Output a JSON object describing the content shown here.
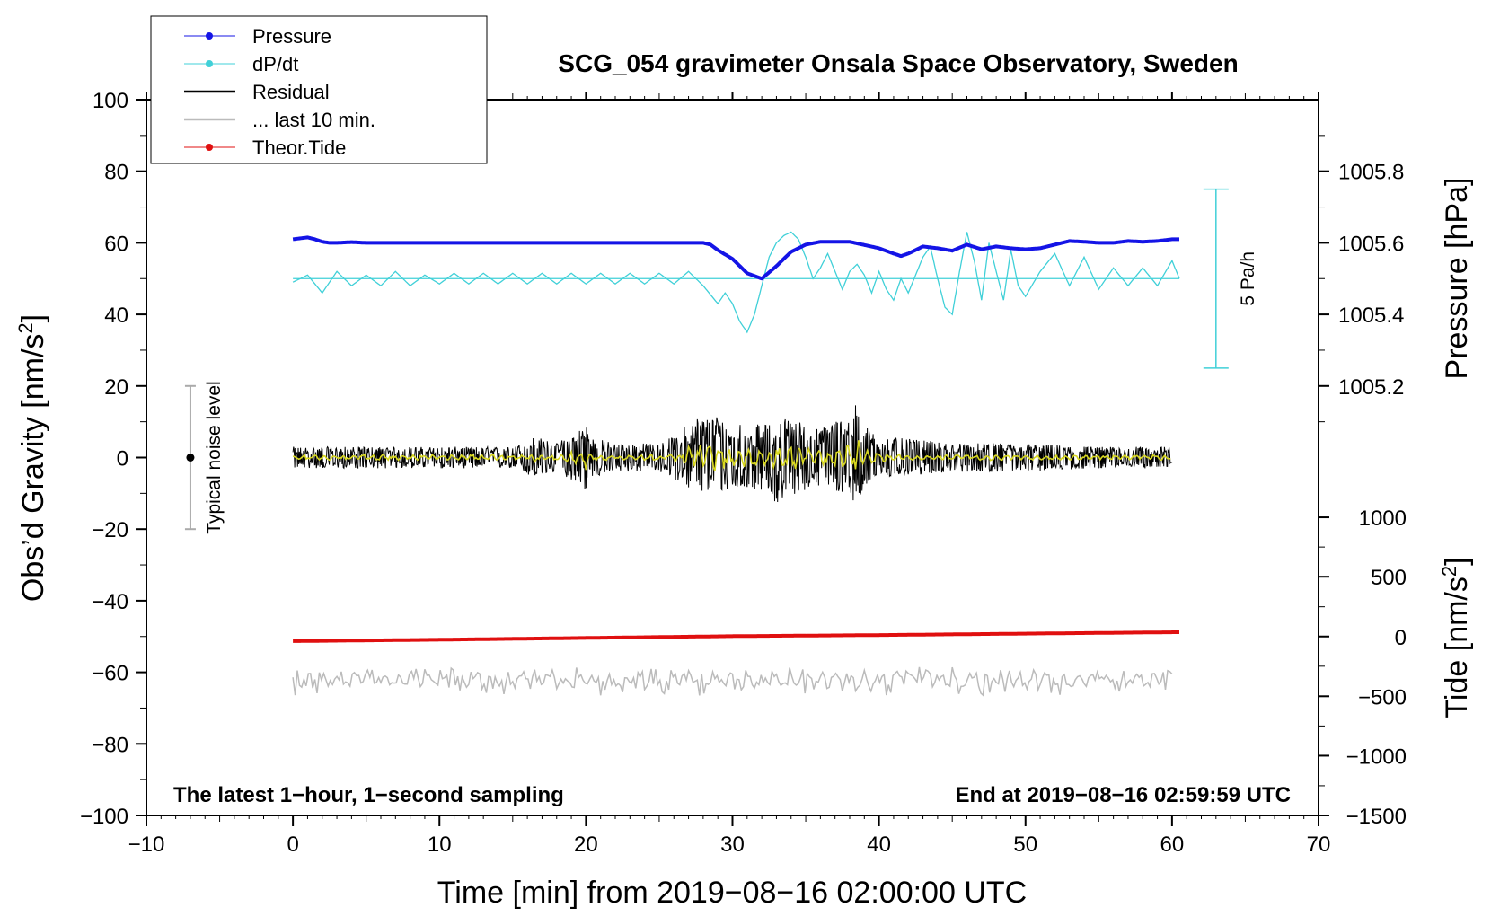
{
  "chart_data": {
    "type": "line",
    "title": "SCG_054 gravimeter Onsala Space Observatory, Sweden",
    "xlabel": "Time [min] from 2019−08−16 02:00:00 UTC",
    "ylabel_left_main": "Obs’d Gravity [nm/s",
    "ylabel_left_sup": "2",
    "ylabel_left_close": "]",
    "ylabel_right_top": "Pressure [hPa]",
    "ylabel_right_bottom_main": "Tide [nm/s",
    "ylabel_right_bottom_sup": "2",
    "ylabel_right_bottom_close": "]",
    "xlim": [
      -10,
      70
    ],
    "ylim_left": [
      -100,
      100
    ],
    "x_ticks": [
      "−10",
      "0",
      "10",
      "20",
      "30",
      "40",
      "50",
      "60",
      "70"
    ],
    "x_tick_values": [
      -10,
      0,
      10,
      20,
      30,
      40,
      50,
      60,
      70
    ],
    "y_ticks_left": [
      "100",
      "80",
      "60",
      "40",
      "20",
      "0",
      "−20",
      "−40",
      "−60",
      "−80",
      "−100"
    ],
    "y_tick_values_left": [
      100,
      80,
      60,
      40,
      20,
      0,
      -20,
      -40,
      -60,
      -80,
      -100
    ],
    "pressure_axis": {
      "ticks": [
        "1005.8",
        "1005.6",
        "1005.4",
        "1005.2"
      ],
      "values": [
        1005.8,
        1005.6,
        1005.4,
        1005.2
      ],
      "gravity_equivalent": [
        80,
        60,
        40,
        20
      ]
    },
    "tide_axis": {
      "ticks": [
        "1000",
        "500",
        "0",
        "−500",
        "−1000",
        "−1500"
      ],
      "values": [
        1000,
        500,
        0,
        -500,
        -1000,
        -1500
      ],
      "gravity_equivalent": [
        -16.7,
        -33.3,
        -50,
        -66.7,
        -83.3,
        -100
      ]
    },
    "legend": {
      "position": "top-left",
      "entries": [
        {
          "label": "Pressure",
          "color": "#1414e6",
          "marker": "dot"
        },
        {
          "label": "dP/dt",
          "color": "#40d0d8",
          "marker": "dot"
        },
        {
          "label": "Residual",
          "color": "#000000",
          "marker": "none"
        },
        {
          "label": "... last 10 min.",
          "color": "#bbbbbb",
          "marker": "none"
        },
        {
          "label": "Theor.Tide",
          "color": "#e01010",
          "marker": "dot"
        }
      ]
    },
    "series": [
      {
        "name": "Pressure",
        "color": "#1414e6",
        "x": [
          0,
          1,
          1.5,
          2,
          2.5,
          3,
          4,
          5,
          10,
          20,
          25,
          28,
          28.5,
          29,
          30,
          31,
          32,
          33,
          34,
          35,
          36,
          38,
          40,
          41,
          41.5,
          42,
          43,
          44,
          45,
          46,
          47,
          48,
          49,
          50,
          51,
          52,
          53,
          54,
          55,
          56,
          57,
          58,
          59,
          60,
          60.5
        ],
        "values": [
          61,
          61.5,
          61,
          60.3,
          60,
          60,
          60.2,
          60,
          60,
          60,
          60,
          60,
          59.5,
          58,
          55.5,
          51.5,
          50,
          53.5,
          57.5,
          59.5,
          60.3,
          60.3,
          58.5,
          57,
          56.3,
          57,
          59,
          58.5,
          57.8,
          59.5,
          58.2,
          59,
          58.5,
          58.2,
          58.5,
          59.5,
          60.5,
          60.3,
          60,
          60,
          60.5,
          60.3,
          60.5,
          61,
          61
        ]
      },
      {
        "name": "dP/dt",
        "color": "#40d0d8",
        "x": [
          0,
          1,
          2,
          3,
          4,
          5,
          6,
          7,
          8,
          9,
          10,
          11,
          12,
          13,
          14,
          15,
          16,
          17,
          18,
          19,
          20,
          21,
          22,
          23,
          24,
          25,
          26,
          27,
          28,
          29,
          29.5,
          30,
          30.5,
          31,
          31.5,
          32,
          32.5,
          33,
          33.5,
          34,
          34.5,
          35,
          35.5,
          36,
          36.5,
          37,
          37.5,
          38,
          38.5,
          39,
          39.5,
          40,
          40.5,
          41,
          41.5,
          42,
          42.5,
          43,
          43.5,
          44,
          44.5,
          45,
          45.5,
          46,
          46.5,
          47,
          47.5,
          48,
          48.5,
          49,
          49.5,
          50,
          51,
          52,
          53,
          54,
          55,
          56,
          57,
          58,
          59,
          60,
          60.5
        ],
        "values": [
          49,
          51,
          46,
          52,
          48,
          51,
          48,
          52,
          48,
          51,
          48.5,
          51.5,
          48.5,
          51.5,
          48.5,
          51.5,
          48.5,
          51.5,
          48.5,
          51.5,
          48.5,
          51.5,
          48.5,
          51.5,
          48.5,
          51.5,
          48.5,
          52,
          48,
          43,
          46,
          43,
          38,
          35,
          40,
          48,
          56,
          60,
          62,
          63,
          61,
          56,
          50,
          53,
          57,
          52,
          47,
          52,
          54,
          51,
          46,
          52,
          47,
          44,
          50,
          46,
          51,
          56,
          59,
          50,
          42,
          40,
          52,
          63,
          55,
          44,
          60,
          52,
          44,
          58,
          48,
          45,
          52,
          57,
          48,
          56,
          47,
          53,
          48,
          53,
          48,
          55,
          50
        ]
      },
      {
        "name": "Theor.Tide",
        "color": "#e01010",
        "x": [
          0,
          10,
          20,
          30,
          40,
          50,
          60.5
        ],
        "values": [
          -51.3,
          -50.9,
          -50.4,
          -49.9,
          -49.6,
          -49.2,
          -48.8
        ]
      },
      {
        "name": "Residual",
        "color": "#000000",
        "x": [
          0,
          5,
          10,
          15,
          16.5,
          18,
          19.8,
          20,
          20.2,
          22,
          25,
          26.5,
          27,
          28,
          29,
          30,
          31,
          32,
          33,
          34,
          35,
          36,
          37,
          38,
          38.5,
          39,
          40,
          45,
          50,
          55,
          60
        ],
        "envelope_max": [
          3,
          3,
          3,
          3,
          6,
          4,
          9,
          13.5,
          6,
          4,
          4,
          7,
          11,
          12,
          12,
          10,
          10,
          9,
          10,
          12,
          9,
          8,
          11,
          12,
          16,
          9,
          6,
          4,
          4,
          3,
          3
        ],
        "envelope_min": [
          -3,
          -3,
          -3,
          -3,
          -6,
          -4,
          -8,
          -10,
          -6,
          -4,
          -4,
          -7,
          -9,
          -10,
          -10,
          -9,
          -9,
          -9,
          -13,
          -11,
          -9,
          -8,
          -10,
          -11,
          -13,
          -9,
          -6,
          -4,
          -4,
          -3,
          -3
        ]
      },
      {
        "name": "... last 10 min.",
        "color": "#bbbbbb",
        "x": [
          0,
          60
        ],
        "center": -62,
        "amplitude": 3,
        "peaks_max": -58.5,
        "peaks_min": -66.5
      }
    ],
    "annotations": {
      "noise_bar_label": "Typical noise level",
      "noise_bar": {
        "x": -7,
        "center": 0,
        "min": -20,
        "max": 20
      },
      "rate_bar_label": "5 Pa/h",
      "rate_bar": {
        "x": 63,
        "min": 25,
        "max": 75
      },
      "bottom_left": "The latest 1−hour, 1−second sampling",
      "bottom_right": "End at 2019−08−16 02:59:59 UTC"
    }
  }
}
